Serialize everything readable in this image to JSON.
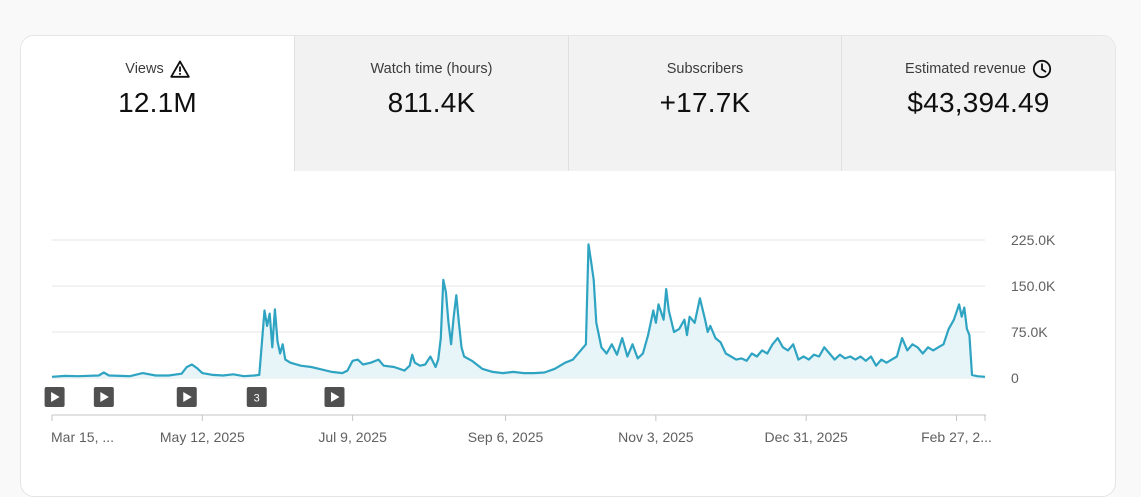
{
  "tabs": [
    {
      "label": "Views",
      "value": "12.1M",
      "icon": "warning-icon"
    },
    {
      "label": "Watch time (hours)",
      "value": "811.4K",
      "icon": ""
    },
    {
      "label": "Subscribers",
      "value": "+17.7K",
      "icon": ""
    },
    {
      "label": "Estimated revenue",
      "value": "$43,394.49",
      "icon": "clock-icon"
    }
  ],
  "colors": {
    "line": "#2fa4c2",
    "fill": "#e7f4f8",
    "grid": "#e5e5e5",
    "marker_bg": "#505050"
  },
  "chart_data": {
    "type": "area",
    "title": "Views",
    "ylim": [
      0,
      225000
    ],
    "y_ticks": [
      0,
      75000,
      150000,
      225000
    ],
    "y_tick_labels": [
      "0",
      "75.0K",
      "150.0K",
      "225.0K"
    ],
    "x_ticks": [
      0,
      58,
      116,
      175,
      233,
      291,
      349
    ],
    "x_tick_labels": [
      "Mar 15, ...",
      "May 12, 2025",
      "Jul 9, 2025",
      "Sep 6, 2025",
      "Nov 3, 2025",
      "Dec 31, 2025",
      "Feb 27, 2..."
    ],
    "markers": [
      {
        "day": 1,
        "label": "",
        "kind": "play"
      },
      {
        "day": 20,
        "label": "",
        "kind": "play"
      },
      {
        "day": 52,
        "label": "",
        "kind": "play"
      },
      {
        "day": 79,
        "label": "3",
        "kind": "count"
      },
      {
        "day": 109,
        "label": "",
        "kind": "play"
      }
    ],
    "series": [
      {
        "name": "Views",
        "points": [
          [
            0,
            2000
          ],
          [
            5,
            3500
          ],
          [
            10,
            3000
          ],
          [
            18,
            4000
          ],
          [
            20,
            9000
          ],
          [
            22,
            4000
          ],
          [
            30,
            3000
          ],
          [
            35,
            8000
          ],
          [
            40,
            4000
          ],
          [
            45,
            4000
          ],
          [
            50,
            7000
          ],
          [
            52,
            18000
          ],
          [
            54,
            22000
          ],
          [
            56,
            16000
          ],
          [
            58,
            8000
          ],
          [
            62,
            5000
          ],
          [
            66,
            4000
          ],
          [
            70,
            6000
          ],
          [
            74,
            3000
          ],
          [
            78,
            4000
          ],
          [
            80,
            5000
          ],
          [
            82,
            110000
          ],
          [
            83,
            85000
          ],
          [
            84,
            105000
          ],
          [
            85,
            50000
          ],
          [
            86,
            112000
          ],
          [
            87,
            60000
          ],
          [
            88,
            40000
          ],
          [
            89,
            55000
          ],
          [
            90,
            30000
          ],
          [
            92,
            25000
          ],
          [
            96,
            20000
          ],
          [
            100,
            18000
          ],
          [
            104,
            14000
          ],
          [
            108,
            10000
          ],
          [
            112,
            8000
          ],
          [
            114,
            12000
          ],
          [
            116,
            28000
          ],
          [
            118,
            30000
          ],
          [
            120,
            22000
          ],
          [
            123,
            25000
          ],
          [
            126,
            30000
          ],
          [
            128,
            20000
          ],
          [
            132,
            18000
          ],
          [
            136,
            12000
          ],
          [
            138,
            20000
          ],
          [
            139,
            38000
          ],
          [
            140,
            25000
          ],
          [
            142,
            20000
          ],
          [
            144,
            22000
          ],
          [
            146,
            35000
          ],
          [
            148,
            18000
          ],
          [
            149,
            30000
          ],
          [
            150,
            65000
          ],
          [
            151,
            160000
          ],
          [
            152,
            140000
          ],
          [
            153,
            90000
          ],
          [
            154,
            55000
          ],
          [
            155,
            100000
          ],
          [
            156,
            135000
          ],
          [
            157,
            90000
          ],
          [
            158,
            50000
          ],
          [
            159,
            35000
          ],
          [
            162,
            28000
          ],
          [
            166,
            15000
          ],
          [
            170,
            10000
          ],
          [
            174,
            8000
          ],
          [
            178,
            10000
          ],
          [
            182,
            8000
          ],
          [
            186,
            8000
          ],
          [
            190,
            9000
          ],
          [
            194,
            15000
          ],
          [
            198,
            25000
          ],
          [
            201,
            30000
          ],
          [
            204,
            45000
          ],
          [
            206,
            55000
          ],
          [
            207,
            218000
          ],
          [
            208,
            190000
          ],
          [
            209,
            160000
          ],
          [
            210,
            90000
          ],
          [
            212,
            50000
          ],
          [
            214,
            40000
          ],
          [
            216,
            55000
          ],
          [
            218,
            38000
          ],
          [
            220,
            65000
          ],
          [
            222,
            35000
          ],
          [
            224,
            55000
          ],
          [
            226,
            32000
          ],
          [
            228,
            40000
          ],
          [
            230,
            70000
          ],
          [
            232,
            110000
          ],
          [
            233,
            90000
          ],
          [
            234,
            120000
          ],
          [
            236,
            95000
          ],
          [
            237,
            145000
          ],
          [
            238,
            110000
          ],
          [
            240,
            75000
          ],
          [
            242,
            80000
          ],
          [
            244,
            95000
          ],
          [
            245,
            70000
          ],
          [
            246,
            100000
          ],
          [
            248,
            90000
          ],
          [
            250,
            130000
          ],
          [
            252,
            95000
          ],
          [
            253,
            75000
          ],
          [
            254,
            85000
          ],
          [
            256,
            65000
          ],
          [
            258,
            58000
          ],
          [
            260,
            40000
          ],
          [
            262,
            35000
          ],
          [
            264,
            30000
          ],
          [
            266,
            32000
          ],
          [
            268,
            28000
          ],
          [
            270,
            40000
          ],
          [
            272,
            35000
          ],
          [
            274,
            45000
          ],
          [
            276,
            40000
          ],
          [
            278,
            55000
          ],
          [
            280,
            65000
          ],
          [
            282,
            50000
          ],
          [
            284,
            45000
          ],
          [
            286,
            55000
          ],
          [
            288,
            30000
          ],
          [
            290,
            35000
          ],
          [
            292,
            30000
          ],
          [
            294,
            38000
          ],
          [
            296,
            35000
          ],
          [
            298,
            50000
          ],
          [
            300,
            40000
          ],
          [
            302,
            30000
          ],
          [
            304,
            38000
          ],
          [
            306,
            32000
          ],
          [
            308,
            35000
          ],
          [
            310,
            30000
          ],
          [
            312,
            35000
          ],
          [
            314,
            28000
          ],
          [
            316,
            35000
          ],
          [
            318,
            20000
          ],
          [
            320,
            30000
          ],
          [
            322,
            25000
          ],
          [
            324,
            30000
          ],
          [
            326,
            35000
          ],
          [
            328,
            65000
          ],
          [
            330,
            45000
          ],
          [
            332,
            55000
          ],
          [
            334,
            50000
          ],
          [
            336,
            40000
          ],
          [
            338,
            50000
          ],
          [
            340,
            45000
          ],
          [
            342,
            50000
          ],
          [
            344,
            55000
          ],
          [
            346,
            80000
          ],
          [
            348,
            95000
          ],
          [
            350,
            120000
          ],
          [
            351,
            100000
          ],
          [
            352,
            115000
          ],
          [
            353,
            80000
          ],
          [
            354,
            70000
          ],
          [
            355,
            5000
          ],
          [
            357,
            3000
          ],
          [
            360,
            2000
          ]
        ]
      }
    ]
  }
}
